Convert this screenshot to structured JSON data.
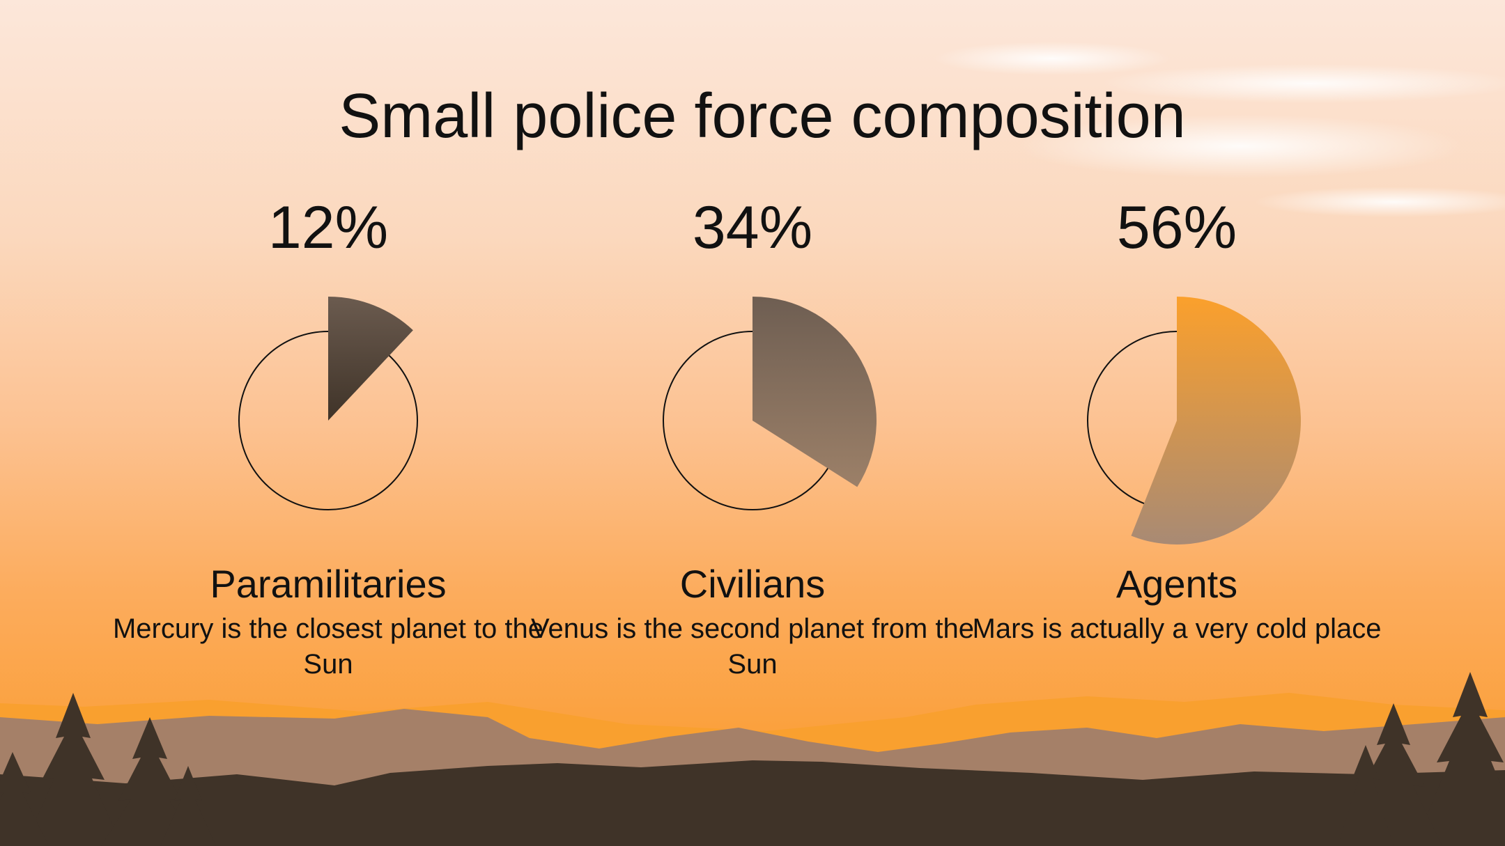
{
  "slide": {
    "title": "Small police force composition"
  },
  "chart_data": {
    "type": "pie",
    "title": "Small police force composition",
    "series": [
      {
        "name": "Paramilitaries",
        "value": 12,
        "value_label": "12%",
        "description": "Mercury is the closest planet to the Sun",
        "color_top": "#6b5b4f",
        "color_bottom": "#3f3328"
      },
      {
        "name": "Civilians",
        "value": 34,
        "value_label": "34%",
        "description": "Venus is the second planet from the Sun",
        "color_top": "#6e5e52",
        "color_bottom": "#9c8068"
      },
      {
        "name": "Agents",
        "value": 56,
        "value_label": "56%",
        "description": "Mars is actually a very cold place",
        "color_top": "#fba02c",
        "color_bottom": "#a88a74"
      }
    ]
  },
  "colors": {
    "sky_top": "#fce7da",
    "sky_bottom": "#f99d37",
    "mountain_far": "#a58068",
    "mountain_near": "#3f3328",
    "text": "#111111"
  }
}
